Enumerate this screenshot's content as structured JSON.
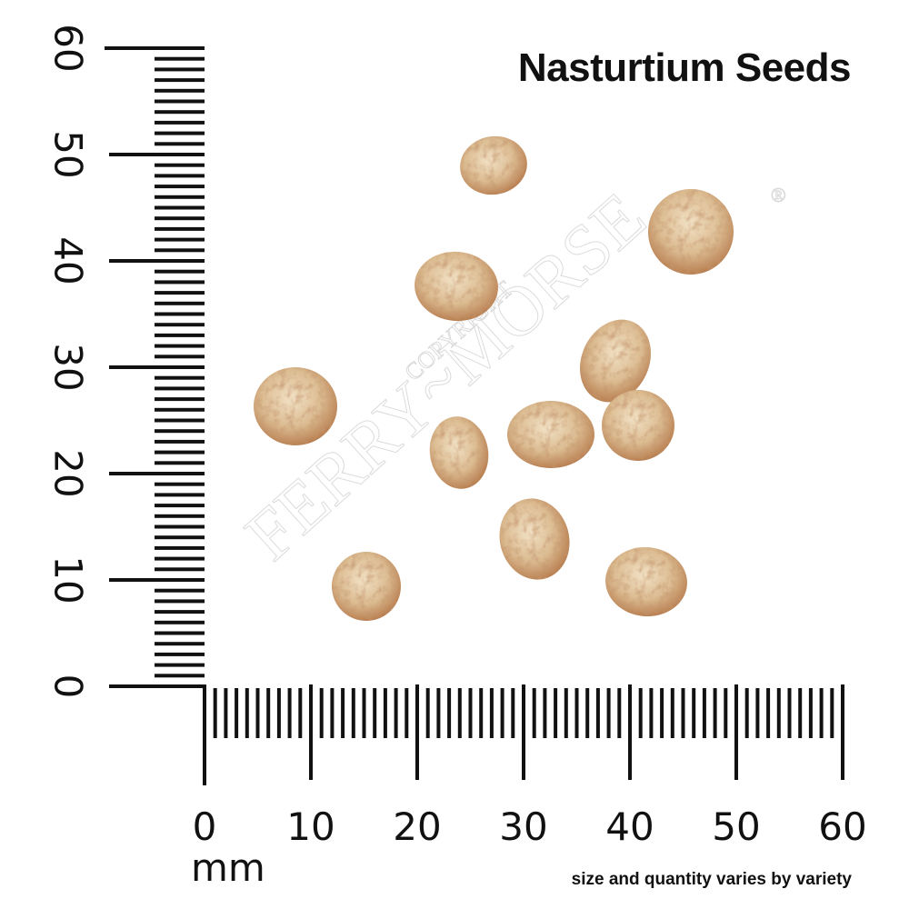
{
  "title": "Nasturtium Seeds",
  "note": "size and quantity varies by variety",
  "unit": "mm",
  "ruler": {
    "x_labels": [
      "0",
      "10",
      "20",
      "30",
      "40",
      "50",
      "60"
    ],
    "y_labels": [
      "0",
      "10",
      "20",
      "30",
      "40",
      "50",
      "60"
    ],
    "range_mm": [
      0,
      60
    ]
  },
  "watermark": {
    "brand": "FERRY~MORSE",
    "copyright": "COPYRIGHT",
    "mark": "®"
  },
  "colors": {
    "ink": "#111111",
    "seed": "#d9b98f",
    "seed_dark": "#a86a3c"
  },
  "seed_count": 11
}
